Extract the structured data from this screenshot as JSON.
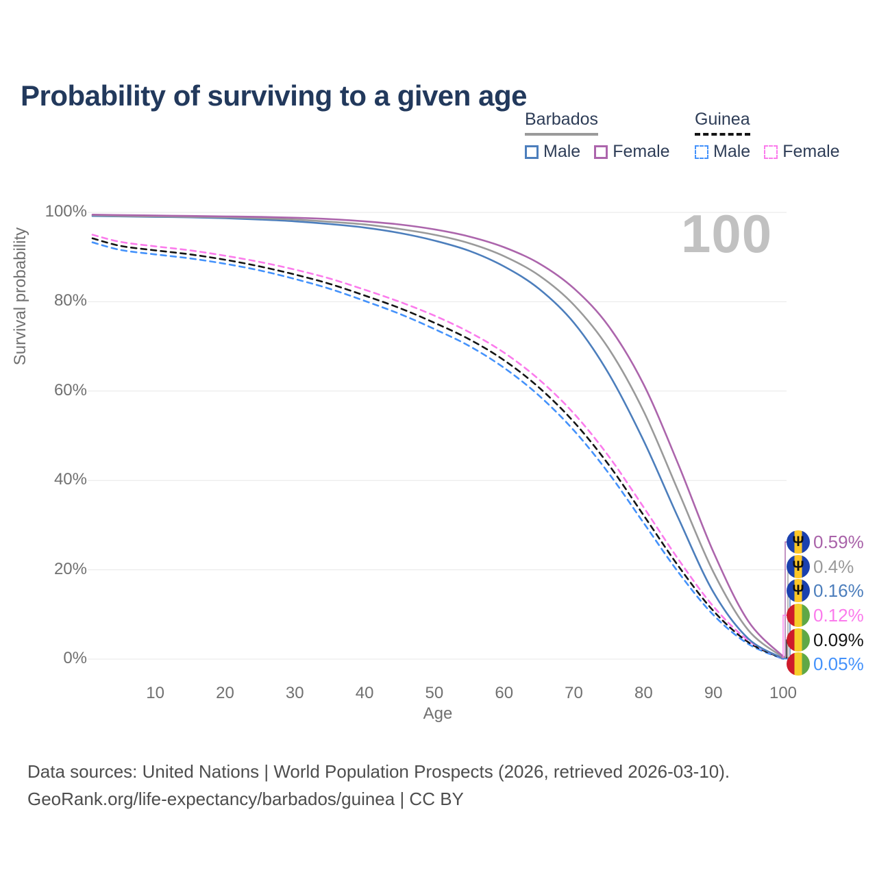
{
  "header": {
    "title": "Probability of surviving to a given age"
  },
  "watermark": "100",
  "legend": {
    "groups": [
      {
        "name": "Barbados",
        "underline_style": "solid",
        "underline_color": "#9a9a9a",
        "items": [
          {
            "label": "Male",
            "color": "#4c7ebc",
            "dashed": false
          },
          {
            "label": "Female",
            "color": "#ac65ac",
            "dashed": false
          }
        ]
      },
      {
        "name": "Guinea",
        "underline_style": "dashed",
        "underline_color": "#141414",
        "items": [
          {
            "label": "Male",
            "color": "#4492fb",
            "dashed": true
          },
          {
            "label": "Female",
            "color": "#fb7bec",
            "dashed": true
          }
        ]
      }
    ]
  },
  "flags": {
    "barbados": {
      "colors": [
        "#1b41ae",
        "#ffc726",
        "#1b41ae"
      ],
      "emblem": "Ψ"
    },
    "guinea": {
      "colors": [
        "#ce1b2b",
        "#f6ce2a",
        "#5fa846"
      ],
      "emblem": ""
    }
  },
  "chart_data": {
    "type": "line",
    "title": "Probability of surviving to a given age",
    "xlabel": "Age",
    "ylabel": "Survival probability",
    "xlim": [
      1,
      100
    ],
    "ylim": [
      0,
      100
    ],
    "grid": "horizontal-only",
    "xticks": [
      10,
      20,
      30,
      40,
      50,
      60,
      70,
      80,
      90,
      100
    ],
    "yticks": [
      0,
      20,
      40,
      60,
      80,
      100
    ],
    "ytick_suffix": "%",
    "legend_position": "top-right",
    "x": [
      1,
      5,
      10,
      15,
      20,
      25,
      30,
      35,
      40,
      45,
      50,
      55,
      60,
      65,
      70,
      75,
      80,
      85,
      90,
      95,
      100
    ],
    "series": [
      {
        "name": "Barbados Female",
        "country": "Barbados",
        "sex": "Female",
        "color": "#ac65ac",
        "line_style": "solid",
        "flag": "barbados",
        "end_label": "0.59%",
        "end_label_color": "#a963a9",
        "values": [
          99.5,
          99.4,
          99.3,
          99.2,
          99.1,
          99.0,
          98.8,
          98.5,
          98.0,
          97.3,
          96.2,
          94.6,
          92.2,
          88.6,
          83.0,
          74.5,
          61.5,
          43.5,
          24.0,
          8.5,
          0.59
        ]
      },
      {
        "name": "Barbados",
        "country": "Barbados",
        "sex": "Both",
        "color": "#9a9a9a",
        "line_style": "solid",
        "flag": "barbados",
        "end_label": "0.4%",
        "end_label_color": "#9a9a9a",
        "values": [
          99.4,
          99.2,
          99.1,
          99.0,
          98.9,
          98.7,
          98.4,
          97.9,
          97.3,
          96.3,
          95.0,
          93.1,
          90.2,
          85.9,
          79.3,
          69.5,
          55.5,
          37.5,
          19.5,
          6.5,
          0.4
        ]
      },
      {
        "name": "Barbados Male",
        "country": "Barbados",
        "sex": "Male",
        "color": "#4c7ebc",
        "line_style": "solid",
        "flag": "barbados",
        "end_label": "0.16%",
        "end_label_color": "#4c7ebc",
        "values": [
          99.2,
          99.1,
          99.0,
          98.9,
          98.7,
          98.4,
          98.0,
          97.4,
          96.6,
          95.4,
          93.7,
          91.4,
          87.9,
          82.9,
          75.3,
          63.9,
          48.9,
          31.5,
          15.0,
          4.6,
          0.16
        ]
      },
      {
        "name": "Guinea Female",
        "country": "Guinea",
        "sex": "Female",
        "color": "#fb7bec",
        "line_style": "dashed",
        "flag": "guinea",
        "end_label": "0.12%",
        "end_label_color": "#fb7bec",
        "values": [
          95.0,
          93.4,
          92.4,
          91.5,
          90.3,
          88.9,
          87.2,
          85.2,
          82.7,
          80.0,
          76.9,
          73.2,
          68.6,
          62.6,
          55.0,
          45.4,
          34.0,
          22.3,
          11.8,
          4.2,
          0.12
        ]
      },
      {
        "name": "Guinea",
        "country": "Guinea",
        "sex": "Both",
        "color": "#141414",
        "line_style": "dashed",
        "flag": "guinea",
        "end_label": "0.09%",
        "end_label_color": "#141414",
        "values": [
          94.2,
          92.5,
          91.5,
          90.6,
          89.4,
          87.9,
          86.1,
          84.0,
          81.4,
          78.6,
          75.3,
          71.6,
          66.9,
          60.8,
          53.1,
          43.5,
          32.2,
          20.8,
          10.8,
          3.8,
          0.09
        ]
      },
      {
        "name": "Guinea Male",
        "country": "Guinea",
        "sex": "Male",
        "color": "#4492fb",
        "line_style": "dashed",
        "flag": "guinea",
        "end_label": "0.05%",
        "end_label_color": "#4492fb",
        "values": [
          93.3,
          91.6,
          90.6,
          89.7,
          88.5,
          87.0,
          85.1,
          82.9,
          80.2,
          77.3,
          73.9,
          70.1,
          65.2,
          59.0,
          51.2,
          41.6,
          30.5,
          19.4,
          9.9,
          3.4,
          0.05
        ]
      }
    ]
  },
  "footer": {
    "line1": "Data sources: United Nations | World Population Prospects (2026, retrieved 2026-03-10).",
    "line2": "GeoRank.org/life-expectancy/barbados/guinea | CC BY"
  }
}
